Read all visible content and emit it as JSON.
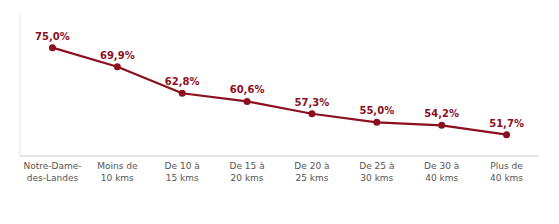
{
  "chart_data": {
    "type": "line",
    "categories": [
      "Notre-Dame-\ndes-Landes",
      "Moins de\n10 kms",
      "De 10 à\n15 kms",
      "De 15 à\n20 kms",
      "De 20 à\n25 kms",
      "De 25 à\n30 kms",
      "De 30 à\n40 kms",
      "Plus de\n40 kms"
    ],
    "values": [
      75.0,
      69.9,
      62.8,
      60.6,
      57.3,
      55.0,
      54.2,
      51.7
    ],
    "value_labels": [
      "75,0%",
      "69,9%",
      "62,8%",
      "60,6%",
      "57,3%",
      "55,0%",
      "54,2%",
      "51,7%"
    ],
    "color": "#8b0f1e",
    "marker": "circle",
    "ylim": [
      46,
      84
    ],
    "data_labels": true,
    "tick_labels": "x",
    "grid": false
  }
}
